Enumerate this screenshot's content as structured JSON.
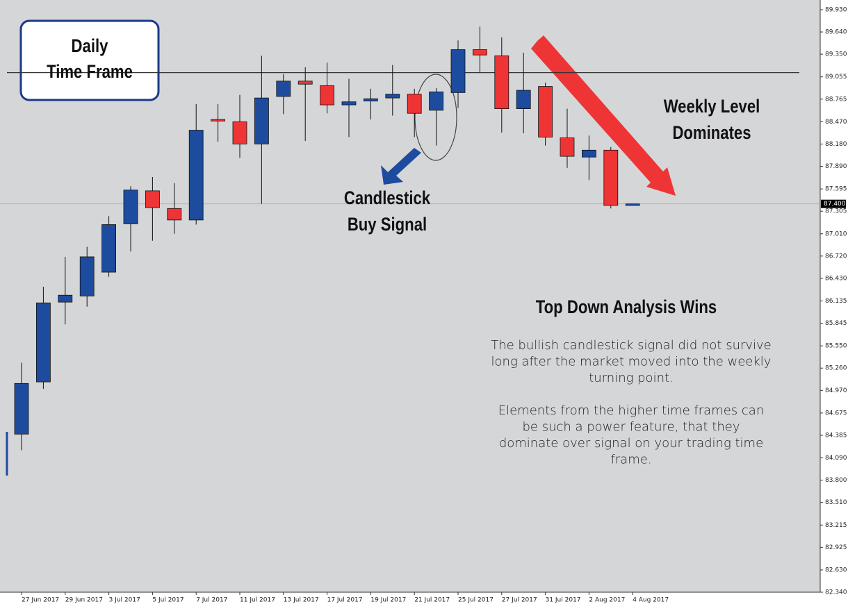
{
  "chart_data": {
    "type": "candlestick",
    "up_color": "#1d4b9e",
    "down_color": "#ee3435",
    "categories": [
      "27 Jun 2017",
      null,
      "29 Jun 2017",
      null,
      "3 Jul 2017",
      null,
      "5 Jul 2017",
      null,
      "7 Jul 2017",
      null,
      "11 Jul 2017",
      null,
      "13 Jul 2017",
      null,
      "17 Jul 2017",
      null,
      "19 Jul 2017",
      null,
      "21 Jul 2017",
      null,
      "25 Jul 2017",
      null,
      "27 Jul 2017",
      null,
      "31 Jul 2017",
      null,
      "2 Aug 2017",
      null,
      "4 Aug 2017"
    ],
    "open": [
      84.4,
      85.08,
      86.12,
      86.2,
      86.51,
      87.14,
      87.57,
      87.34,
      87.19,
      88.5,
      88.47,
      88.18,
      88.8,
      89.0,
      88.94,
      88.69,
      88.74,
      88.78,
      88.83,
      88.62,
      88.85,
      89.41,
      89.33,
      88.64,
      88.93,
      88.26,
      88.01,
      88.1,
      87.38
    ],
    "high": [
      85.33,
      86.32,
      86.71,
      86.84,
      87.24,
      87.63,
      87.75,
      87.67,
      88.7,
      88.7,
      88.82,
      89.33,
      89.09,
      89.18,
      89.24,
      89.03,
      88.9,
      89.21,
      88.9,
      88.91,
      89.53,
      89.71,
      89.57,
      89.37,
      88.98,
      88.64,
      88.29,
      88.14,
      87.4
    ],
    "low": [
      84.19,
      84.99,
      85.83,
      86.06,
      86.45,
      86.78,
      86.92,
      87.01,
      87.13,
      88.21,
      88.0,
      87.4,
      88.57,
      88.22,
      88.58,
      88.27,
      88.5,
      88.55,
      88.27,
      88.16,
      88.65,
      89.11,
      88.33,
      88.32,
      88.16,
      87.87,
      87.71,
      87.34,
      87.38
    ],
    "close": [
      85.06,
      86.11,
      86.21,
      86.71,
      87.13,
      87.58,
      87.35,
      87.19,
      88.36,
      88.48,
      88.18,
      88.78,
      89.0,
      88.96,
      88.69,
      88.73,
      88.77,
      88.83,
      88.58,
      88.86,
      89.41,
      89.34,
      88.64,
      88.88,
      88.27,
      88.02,
      88.1,
      87.38,
      87.4
    ],
    "ylim": [
      82.34,
      89.93
    ],
    "yticks": [
      {
        "value": 89.93,
        "label": "89.930"
      },
      {
        "value": 89.64,
        "label": "89.640"
      },
      {
        "value": 89.35,
        "label": "89.350"
      },
      89.055,
      88.765,
      {
        "value": 88.47,
        "label": "88.470"
      },
      {
        "value": 88.18,
        "label": "88.180"
      },
      {
        "value": 87.89,
        "label": "87.890"
      },
      87.595,
      87.305,
      {
        "value": 87.01,
        "label": "87.010"
      },
      {
        "value": 86.72,
        "label": "86.720"
      },
      {
        "value": 86.43,
        "label": "86.430"
      },
      86.135,
      85.845,
      {
        "value": 85.55,
        "label": "85.550"
      },
      {
        "value": 85.26,
        "label": "85.260"
      },
      {
        "value": 84.97,
        "label": "84.970"
      },
      84.675,
      84.385,
      {
        "value": 84.09,
        "label": "84.090"
      },
      {
        "value": 83.8,
        "label": "83.800"
      },
      {
        "value": 83.51,
        "label": "83.510"
      },
      83.215,
      82.925,
      {
        "value": 82.63,
        "label": "82.630"
      },
      {
        "value": 82.34,
        "label": "82.340"
      }
    ],
    "weekly_level": 89.11,
    "last_price": {
      "value": 87.4,
      "label": "87.400"
    },
    "annotations": {
      "daily": [
        "Daily",
        "Time Frame"
      ],
      "signal": [
        "Candlestick",
        "Buy Signal"
      ],
      "weekly": [
        "Weekly Level",
        "Dominates"
      ],
      "heading": "Top Down Analysis Wins",
      "paragraphs": [
        [
          "The bullish candlestick signal did not survive",
          "long after the market moved into the weekly",
          "turning point."
        ],
        [
          "Elements from the higher time frames can",
          "be such a power feature, that they",
          "dominate over signal on your trading time",
          "frame."
        ]
      ]
    }
  }
}
